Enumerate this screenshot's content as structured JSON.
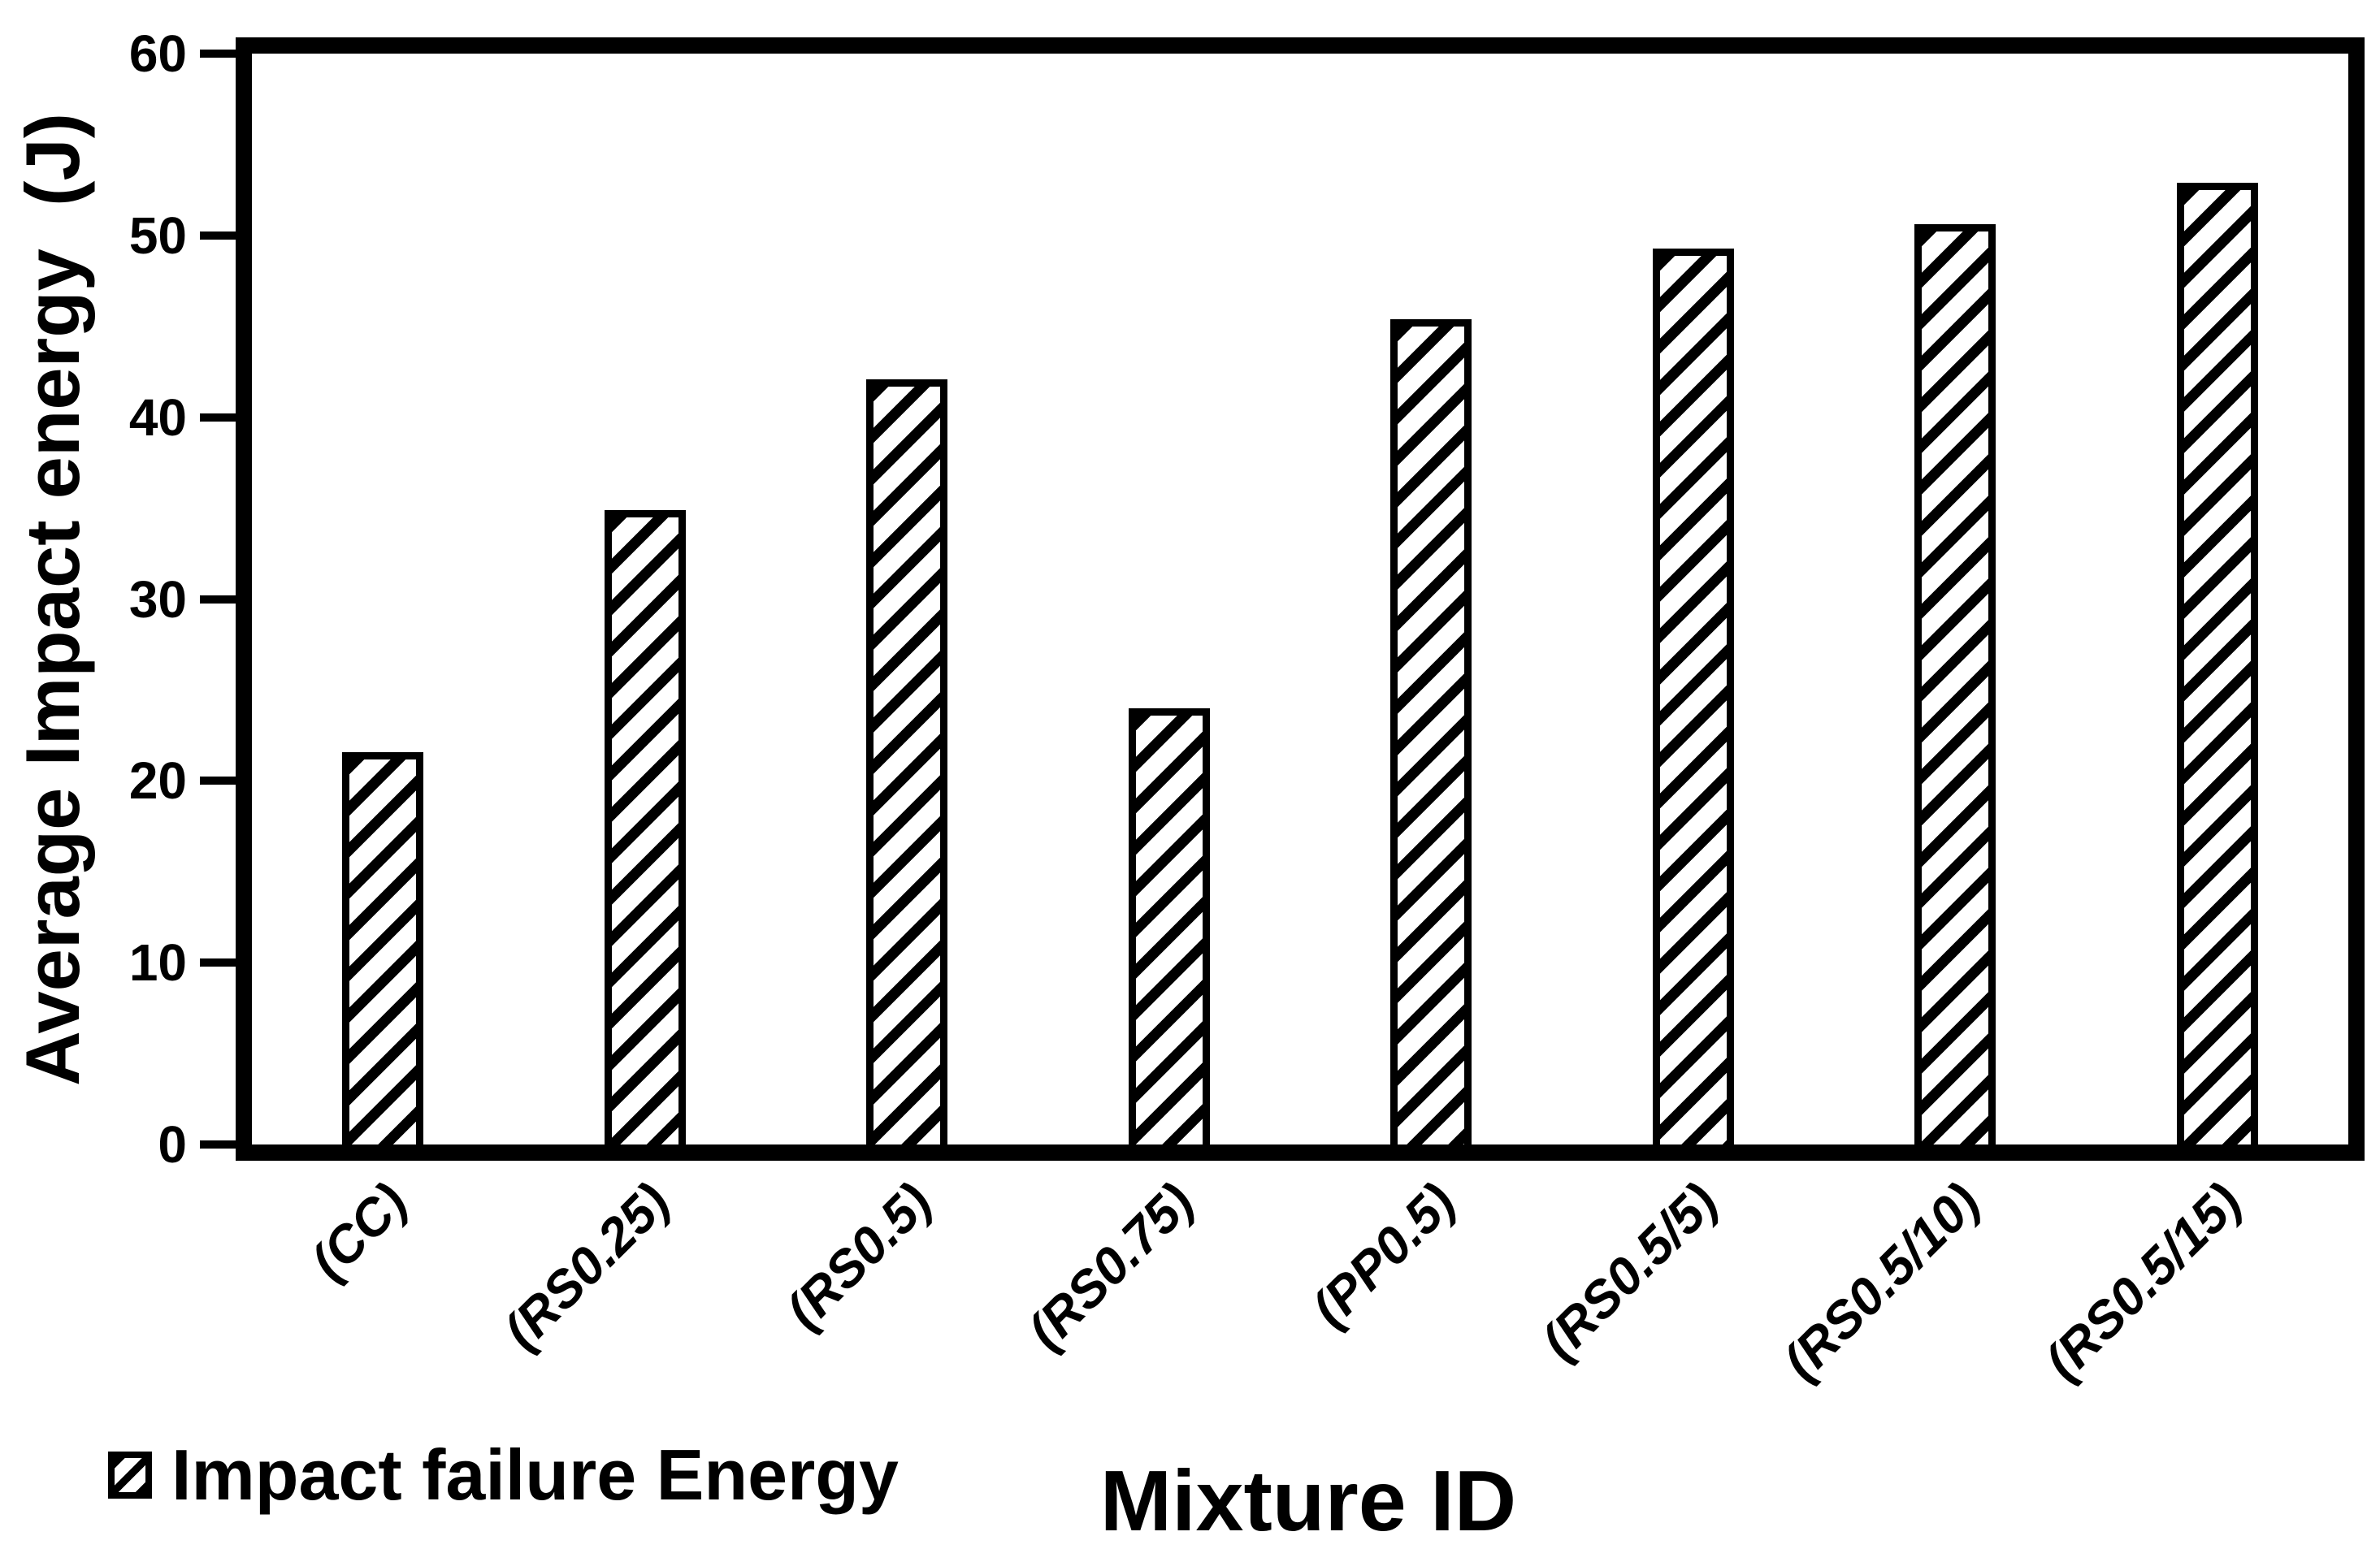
{
  "chart_data": {
    "type": "bar",
    "categories": [
      "(CC)",
      "(RS0.25)",
      "(RS0.5)",
      "(RS0.75)",
      "(PP0.5)",
      "(RS0.5/5)",
      "(RS0.5/10)",
      "(RS0.5/15)"
    ],
    "values": [
      21.6,
      34.9,
      42.1,
      24.0,
      45.4,
      49.3,
      50.6,
      52.9
    ],
    "series": [
      {
        "name": "Impact failure Energy",
        "values": [
          21.6,
          34.9,
          42.1,
          24.0,
          45.4,
          49.3,
          50.6,
          52.9
        ]
      }
    ],
    "title": "",
    "xlabel": "Mixture ID",
    "ylabel": "Average Impact energy  (J)",
    "ylim": [
      0,
      60
    ],
    "yticks": [
      0,
      10,
      20,
      30,
      40,
      50,
      60
    ],
    "grid": false,
    "legend_position": "bottom-left",
    "bar_fill": "diagonal-hatch",
    "bar_color": "#000000",
    "background_color": "#ffffff"
  },
  "legend": {
    "swatch": "diagonal-hatch-swatch",
    "label": "Impact failure Energy"
  },
  "axes": {
    "x_title": "Mixture ID",
    "y_title": "Average Impact energy  (J)"
  }
}
